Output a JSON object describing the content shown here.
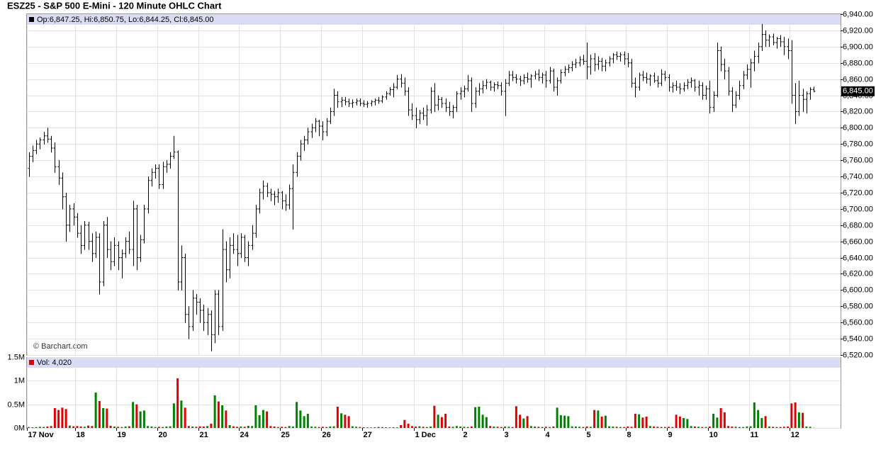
{
  "chart_data": {
    "type": "ohlc",
    "title": "ESZ25 - S&P 500 E-Mini - 120 Minute OHLC Chart",
    "legend_text": "Op:6,847.25, Hi:6,850.75, Lo:6,844.25, Cl:6,845.00",
    "watermark": "© Barchart.com",
    "color": "#000000",
    "grid": true,
    "categories": [
      "17 Nov",
      null,
      null,
      null,
      null,
      null,
      null,
      null,
      null,
      null,
      null,
      null,
      null,
      "18",
      null,
      null,
      null,
      null,
      null,
      null,
      null,
      null,
      null,
      null,
      "19",
      null,
      null,
      null,
      null,
      null,
      null,
      null,
      null,
      null,
      null,
      "20",
      null,
      null,
      null,
      null,
      null,
      null,
      null,
      null,
      null,
      null,
      "21",
      null,
      null,
      null,
      null,
      null,
      null,
      null,
      null,
      null,
      null,
      "24",
      null,
      null,
      null,
      null,
      null,
      null,
      null,
      null,
      null,
      null,
      "25",
      null,
      null,
      null,
      null,
      null,
      null,
      null,
      null,
      null,
      null,
      "26",
      null,
      null,
      null,
      null,
      null,
      null,
      null,
      null,
      null,
      null,
      "27",
      null,
      null,
      null,
      null,
      null,
      null,
      null,
      null,
      null,
      null,
      null,
      null,
      null,
      "1 Dec",
      null,
      null,
      null,
      null,
      null,
      null,
      null,
      null,
      null,
      null,
      null,
      null,
      "2",
      null,
      null,
      null,
      null,
      null,
      null,
      null,
      null,
      null,
      null,
      "3",
      null,
      null,
      null,
      null,
      null,
      null,
      null,
      null,
      null,
      null,
      "4",
      null,
      null,
      null,
      null,
      null,
      null,
      null,
      null,
      null,
      null,
      "5",
      null,
      null,
      null,
      null,
      null,
      null,
      null,
      null,
      null,
      null,
      "8",
      null,
      null,
      null,
      null,
      null,
      null,
      null,
      null,
      null,
      null,
      "9",
      null,
      null,
      null,
      null,
      null,
      null,
      null,
      null,
      null,
      null,
      "10",
      null,
      null,
      null,
      null,
      null,
      null,
      null,
      null,
      null,
      null,
      "11",
      null,
      null,
      null,
      null,
      null,
      null,
      null,
      null,
      null,
      null,
      "12",
      null,
      null,
      null,
      null,
      null,
      null
    ],
    "open": [
      6750,
      6765,
      6772,
      6780,
      6785,
      6790,
      6786,
      6775,
      6752,
      6738,
      6715,
      6680,
      6700,
      6690,
      6670,
      6655,
      6680,
      6660,
      6645,
      6665,
      6610,
      6680,
      6650,
      6635,
      6655,
      6640,
      6645,
      6660,
      6650,
      6700,
      6640,
      6662,
      6700,
      6735,
      6745,
      6750,
      6730,
      6752,
      6755,
      6765,
      6770,
      6610,
      6640,
      6570,
      6555,
      6590,
      6585,
      6575,
      6560,
      6570,
      6545,
      6595,
      6555,
      6650,
      6625,
      6655,
      6650,
      6645,
      6665,
      6640,
      6655,
      6670,
      6700,
      6720,
      6728,
      6720,
      6718,
      6715,
      6720,
      6710,
      6705,
      6725,
      6745,
      6765,
      6780,
      6785,
      6795,
      6800,
      6808,
      6802,
      6795,
      6808,
      6820,
      6840,
      6832,
      6834,
      6832,
      6830,
      6831,
      6833,
      6830,
      6829,
      6830,
      6832,
      6834,
      6833,
      6838,
      6842,
      6847,
      6850,
      6860,
      6855,
      6845,
      6822,
      6815,
      6810,
      6818,
      6815,
      6822,
      6845,
      6828,
      6835,
      6830,
      6825,
      6820,
      6825,
      6842,
      6845,
      6848,
      6858,
      6830,
      6845,
      6848,
      6852,
      6856,
      6850,
      6853,
      6852,
      6845,
      6855,
      6865,
      6862,
      6860,
      6858,
      6862,
      6860,
      6864,
      6866,
      6862,
      6865,
      6858,
      6870,
      6850,
      6858,
      6868,
      6872,
      6874,
      6878,
      6880,
      6884,
      6882,
      6875,
      6885,
      6878,
      6882,
      6876,
      6880,
      6885,
      6890,
      6888,
      6890,
      6885,
      6880,
      6855,
      6850,
      6865,
      6862,
      6860,
      6864,
      6858,
      6855,
      6866,
      6862,
      6850,
      6852,
      6850,
      6848,
      6852,
      6856,
      6858,
      6850,
      6852,
      6840,
      6848,
      6825,
      6840,
      6895,
      6878,
      6870,
      6845,
      6828,
      6840,
      6852,
      6865,
      6872,
      6880,
      6888,
      6900,
      6915,
      6908,
      6912,
      6905,
      6910,
      6906,
      6900,
      6895,
      6840,
      6820,
      6840,
      6835,
      6842,
      6847.25
    ],
    "high": [
      6770,
      6778,
      6785,
      6788,
      6795,
      6800,
      6790,
      6782,
      6760,
      6745,
      6720,
      6705,
      6707,
      6695,
      6680,
      6685,
      6684,
      6670,
      6672,
      6670,
      6685,
      6690,
      6660,
      6665,
      6660,
      6650,
      6665,
      6672,
      6710,
      6705,
      6668,
      6705,
      6740,
      6750,
      6755,
      6755,
      6758,
      6760,
      6770,
      6790,
      6772,
      6655,
      6645,
      6580,
      6600,
      6595,
      6590,
      6582,
      6578,
      6575,
      6600,
      6600,
      6675,
      6660,
      6665,
      6670,
      6668,
      6670,
      6668,
      6660,
      6680,
      6705,
      6725,
      6735,
      6732,
      6725,
      6722,
      6725,
      6722,
      6718,
      6730,
      6755,
      6770,
      6785,
      6790,
      6800,
      6805,
      6812,
      6810,
      6808,
      6812,
      6825,
      6848,
      6845,
      6838,
      6838,
      6836,
      6835,
      6836,
      6836,
      6834,
      6833,
      6834,
      6836,
      6838,
      6840,
      6845,
      6850,
      6855,
      6865,
      6866,
      6862,
      6850,
      6830,
      6825,
      6822,
      6825,
      6828,
      6850,
      6855,
      6840,
      6838,
      6836,
      6832,
      6828,
      6845,
      6850,
      6852,
      6865,
      6862,
      6850,
      6855,
      6858,
      6860,
      6858,
      6856,
      6857,
      6856,
      6860,
      6870,
      6870,
      6866,
      6864,
      6866,
      6868,
      6866,
      6870,
      6872,
      6868,
      6870,
      6875,
      6873,
      6862,
      6872,
      6876,
      6878,
      6882,
      6885,
      6888,
      6890,
      6905,
      6890,
      6892,
      6888,
      6886,
      6884,
      6888,
      6892,
      6894,
      6893,
      6894,
      6892,
      6885,
      6862,
      6868,
      6870,
      6868,
      6866,
      6868,
      6864,
      6872,
      6870,
      6866,
      6856,
      6858,
      6855,
      6856,
      6860,
      6862,
      6860,
      6858,
      6856,
      6852,
      6858,
      6845,
      6905,
      6900,
      6885,
      6875,
      6850,
      6845,
      6858,
      6870,
      6878,
      6885,
      6895,
      6905,
      6928,
      6920,
      6915,
      6916,
      6912,
      6914,
      6912,
      6910,
      6908,
      6855,
      6858,
      6848,
      6845,
      6850,
      6850.75
    ],
    "low": [
      6740,
      6758,
      6768,
      6774,
      6780,
      6782,
      6770,
      6745,
      6730,
      6700,
      6660,
      6672,
      6680,
      6665,
      6645,
      6650,
      6650,
      6635,
      6640,
      6595,
      6605,
      6640,
      6625,
      6630,
      6625,
      6615,
      6640,
      6645,
      6630,
      6625,
      6635,
      6658,
      6695,
      6728,
      6738,
      6725,
      6725,
      6745,
      6750,
      6762,
      6600,
      6600,
      6560,
      6540,
      6550,
      6570,
      6560,
      6550,
      6545,
      6525,
      6535,
      6545,
      6550,
      6610,
      6615,
      6645,
      6630,
      6640,
      6635,
      6630,
      6650,
      6665,
      6695,
      6712,
      6715,
      6710,
      6705,
      6708,
      6700,
      6698,
      6700,
      6675,
      6740,
      6760,
      6772,
      6780,
      6788,
      6795,
      6790,
      6785,
      6790,
      6805,
      6815,
      6825,
      6826,
      6828,
      6826,
      6825,
      6828,
      6827,
      6826,
      6825,
      6827,
      6828,
      6830,
      6831,
      6835,
      6840,
      6838,
      6848,
      6850,
      6840,
      6815,
      6810,
      6800,
      6805,
      6810,
      6803,
      6818,
      6820,
      6822,
      6825,
      6820,
      6815,
      6812,
      6820,
      6835,
      6838,
      6845,
      6820,
      6825,
      6840,
      6843,
      6848,
      6846,
      6845,
      6848,
      6840,
      6815,
      6852,
      6858,
      6855,
      6852,
      6854,
      6856,
      6850,
      6860,
      6858,
      6855,
      6850,
      6855,
      6845,
      6840,
      6855,
      6864,
      6868,
      6870,
      6874,
      6876,
      6878,
      6860,
      6866,
      6870,
      6872,
      6870,
      6870,
      6876,
      6880,
      6884,
      6882,
      6878,
      6875,
      6850,
      6838,
      6846,
      6858,
      6855,
      6852,
      6856,
      6850,
      6852,
      6858,
      6845,
      6844,
      6846,
      6842,
      6845,
      6848,
      6850,
      6845,
      6840,
      6835,
      6835,
      6818,
      6820,
      6838,
      6870,
      6860,
      6840,
      6820,
      6825,
      6835,
      6848,
      6860,
      6850,
      6870,
      6880,
      6895,
      6900,
      6900,
      6902,
      6898,
      6900,
      6890,
      6885,
      6830,
      6805,
      6815,
      6820,
      6818,
      6835,
      6844.25
    ],
    "close": [
      6765,
      6772,
      6780,
      6785,
      6790,
      6786,
      6775,
      6752,
      6738,
      6715,
      6680,
      6700,
      6690,
      6670,
      6655,
      6680,
      6660,
      6645,
      6665,
      6610,
      6680,
      6650,
      6635,
      6655,
      6640,
      6645,
      6660,
      6650,
      6700,
      6640,
      6662,
      6700,
      6735,
      6745,
      6750,
      6730,
      6752,
      6755,
      6765,
      6770,
      6610,
      6640,
      6570,
      6555,
      6590,
      6585,
      6575,
      6560,
      6570,
      6545,
      6595,
      6555,
      6650,
      6625,
      6655,
      6650,
      6645,
      6665,
      6640,
      6655,
      6670,
      6700,
      6720,
      6728,
      6720,
      6718,
      6715,
      6720,
      6710,
      6705,
      6725,
      6745,
      6765,
      6780,
      6785,
      6795,
      6800,
      6808,
      6802,
      6795,
      6808,
      6820,
      6840,
      6832,
      6834,
      6832,
      6830,
      6831,
      6833,
      6830,
      6829,
      6830,
      6832,
      6834,
      6833,
      6838,
      6842,
      6847,
      6850,
      6860,
      6855,
      6845,
      6822,
      6815,
      6810,
      6818,
      6815,
      6822,
      6845,
      6828,
      6835,
      6830,
      6825,
      6820,
      6825,
      6842,
      6845,
      6848,
      6858,
      6830,
      6845,
      6848,
      6852,
      6856,
      6850,
      6853,
      6852,
      6845,
      6855,
      6865,
      6862,
      6860,
      6858,
      6862,
      6860,
      6864,
      6866,
      6862,
      6865,
      6858,
      6870,
      6850,
      6858,
      6868,
      6872,
      6874,
      6878,
      6880,
      6884,
      6882,
      6875,
      6885,
      6878,
      6882,
      6876,
      6880,
      6885,
      6890,
      6888,
      6890,
      6885,
      6880,
      6855,
      6850,
      6865,
      6862,
      6860,
      6864,
      6858,
      6855,
      6866,
      6862,
      6850,
      6852,
      6850,
      6848,
      6852,
      6856,
      6858,
      6850,
      6852,
      6840,
      6848,
      6825,
      6840,
      6895,
      6878,
      6870,
      6845,
      6828,
      6840,
      6852,
      6865,
      6872,
      6880,
      6888,
      6900,
      6915,
      6908,
      6912,
      6905,
      6910,
      6906,
      6900,
      6895,
      6840,
      6820,
      6840,
      6835,
      6842,
      6847.25,
      6845
    ],
    "ylim": [
      6520,
      6940
    ],
    "yticks": [
      {
        "value": 6520,
        "label": "6,520.00"
      },
      {
        "value": 6540,
        "label": "6,540.00"
      },
      {
        "value": 6560,
        "label": "6,560.00"
      },
      {
        "value": 6580,
        "label": "6,580.00"
      },
      {
        "value": 6600,
        "label": "6,600.00"
      },
      {
        "value": 6620,
        "label": "6,620.00"
      },
      {
        "value": 6640,
        "label": "6,640.00"
      },
      {
        "value": 6660,
        "label": "6,660.00"
      },
      {
        "value": 6680,
        "label": "6,680.00"
      },
      {
        "value": 6700,
        "label": "6,700.00"
      },
      {
        "value": 6720,
        "label": "6,720.00"
      },
      {
        "value": 6740,
        "label": "6,740.00"
      },
      {
        "value": 6760,
        "label": "6,760.00"
      },
      {
        "value": 6780,
        "label": "6,780.00"
      },
      {
        "value": 6800,
        "label": "6,800.00"
      },
      {
        "value": 6820,
        "label": "6,820.00"
      },
      {
        "value": 6840,
        "label": "6,840.00"
      },
      {
        "value": 6860,
        "label": "6,860.00"
      },
      {
        "value": 6880,
        "label": "6,880.00"
      },
      {
        "value": 6900,
        "label": "6,900.00"
      },
      {
        "value": 6920,
        "label": "6,920.00"
      },
      {
        "value": 6940,
        "label": "6,940.00"
      }
    ],
    "last_price": {
      "value": 6845,
      "label": "6,845.00"
    },
    "volume": {
      "label": "Vol: 4,020",
      "up_color": "#008000",
      "down_color": "#e00000",
      "ylim": [
        0,
        1500000
      ],
      "yticks": [
        {
          "value": 0,
          "label": "0M"
        },
        {
          "value": 500000,
          "label": "0.5M"
        },
        {
          "value": 1000000,
          "label": "1M"
        },
        {
          "value": 1500000,
          "label": "1.5M"
        }
      ],
      "values": [
        20000,
        15000,
        18000,
        25000,
        22000,
        30000,
        40000,
        420000,
        380000,
        430000,
        400000,
        50000,
        35000,
        40000,
        30000,
        25000,
        50000,
        40000,
        750000,
        570000,
        420000,
        410000,
        45000,
        30000,
        25000,
        20000,
        30000,
        35000,
        550000,
        500000,
        350000,
        370000,
        40000,
        30000,
        20000,
        25000,
        20000,
        30000,
        35000,
        520000,
        1050000,
        580000,
        430000,
        40000,
        30000,
        25000,
        35000,
        30000,
        40000,
        90000,
        690000,
        560000,
        480000,
        370000,
        60000,
        35000,
        25000,
        30000,
        25000,
        45000,
        40000,
        480000,
        270000,
        380000,
        350000,
        40000,
        30000,
        20000,
        25000,
        20000,
        40000,
        30000,
        550000,
        370000,
        250000,
        300000,
        30000,
        25000,
        20000,
        25000,
        20000,
        30000,
        35000,
        450000,
        310000,
        280000,
        250000,
        35000,
        25000,
        20000,
        15000,
        12000,
        10000,
        15000,
        20000,
        18000,
        15000,
        12000,
        15000,
        14000,
        60000,
        170000,
        90000,
        40000,
        30000,
        35000,
        25000,
        20000,
        30000,
        470000,
        280000,
        230000,
        300000,
        30000,
        25000,
        40000,
        30000,
        25000,
        20000,
        30000,
        440000,
        450000,
        280000,
        230000,
        40000,
        30000,
        25000,
        20000,
        30000,
        25000,
        20000,
        460000,
        280000,
        200000,
        250000,
        40000,
        30000,
        25000,
        20000,
        25000,
        20000,
        30000,
        430000,
        270000,
        260000,
        250000,
        35000,
        30000,
        25000,
        20000,
        30000,
        25000,
        380000,
        370000,
        240000,
        260000,
        35000,
        30000,
        25000,
        20000,
        20000,
        30000,
        25000,
        300000,
        290000,
        220000,
        240000,
        40000,
        30000,
        25000,
        20000,
        20000,
        25000,
        20000,
        280000,
        240000,
        210000,
        190000,
        40000,
        30000,
        25000,
        20000,
        20000,
        30000,
        300000,
        220000,
        420000,
        330000,
        40000,
        30000,
        25000,
        20000,
        20000,
        30000,
        35000,
        540000,
        380000,
        210000,
        250000,
        30000,
        25000,
        20000,
        20000,
        25000,
        30000,
        520000,
        540000,
        330000,
        320000,
        30000,
        25000,
        4020
      ]
    }
  }
}
